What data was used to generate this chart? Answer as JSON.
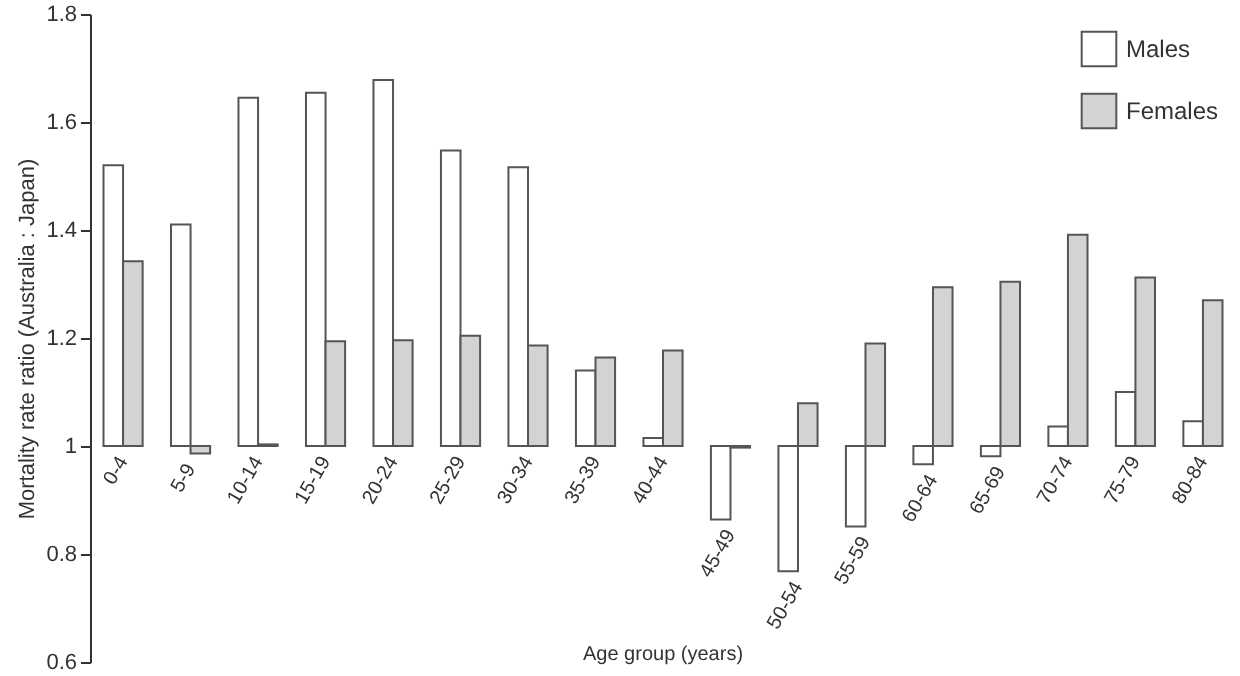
{
  "chart_data": {
    "type": "bar",
    "xlabel": "Age group (years)",
    "ylabel": "Mortality rate ratio (Australia : Japan)",
    "categories": [
      "0-4",
      "5-9",
      "10-14",
      "15-19",
      "20-24",
      "25-29",
      "30-34",
      "35-39",
      "40-44",
      "45-49",
      "50-54",
      "55-59",
      "60-64",
      "65-69",
      "70-74",
      "75-79",
      "80-84"
    ],
    "series": [
      {
        "name": "Males",
        "color": "#ffffff",
        "base": [
          1,
          1,
          1,
          1,
          1,
          1,
          1,
          1,
          1,
          1,
          1,
          1,
          1,
          1,
          1,
          1,
          1
        ],
        "values": [
          0.52,
          0.41,
          0.645,
          0.654,
          0.678,
          0.547,
          0.516,
          0.14,
          0.015,
          -0.136,
          -0.232,
          -0.149,
          -0.034,
          -0.019,
          0.036,
          0.1,
          0.046
        ]
      },
      {
        "name": "Females",
        "color": "#d3d3d3",
        "base": [
          1,
          1,
          1,
          1,
          1,
          1,
          1,
          1,
          1,
          1,
          1,
          1,
          1,
          1,
          1,
          1,
          1
        ],
        "values": [
          0.342,
          -0.014,
          0.003,
          0.194,
          0.196,
          0.204,
          0.186,
          0.164,
          0.177,
          -0.003,
          0.079,
          0.19,
          0.294,
          0.304,
          0.391,
          0.312,
          0.27
        ]
      }
    ],
    "ylim": [
      0.6,
      1.8
    ],
    "yticks": [
      0.6,
      0.8,
      1,
      1.2,
      1.4,
      1.6,
      1.8
    ],
    "legend": "top right"
  }
}
